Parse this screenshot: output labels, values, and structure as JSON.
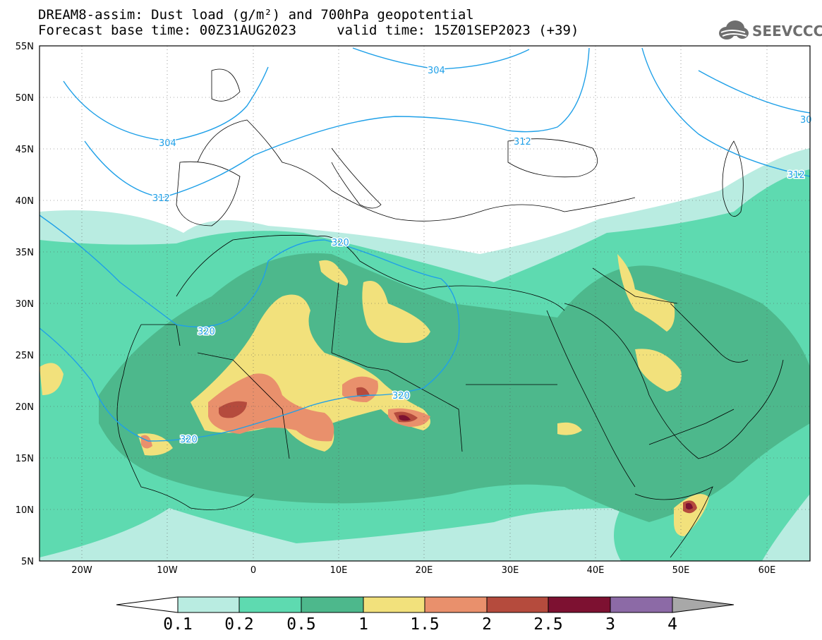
{
  "header": {
    "title_line1": "DREAM8-assim: Dust load (g/m²) and 700hPa geopotential",
    "title_line2": "Forecast base time: 00Z31AUG2023     valid time: 15Z01SEP2023 (+39)"
  },
  "logo": {
    "text": "SEEVCCC",
    "icon": "cloud-icon"
  },
  "map": {
    "lat_labels": [
      "55N",
      "50N",
      "45N",
      "40N",
      "35N",
      "30N",
      "25N",
      "20N",
      "15N",
      "10N",
      "5N"
    ],
    "lon_labels": [
      "20W",
      "10W",
      "0",
      "10E",
      "20E",
      "30E",
      "40E",
      "50E",
      "60E"
    ],
    "contour_labels": [
      "304",
      "304",
      "312",
      "312",
      "312",
      "320",
      "320",
      "320",
      "320",
      "30"
    ]
  },
  "colorbar": {
    "labels": [
      "0.1",
      "0.2",
      "0.5",
      "1",
      "1.5",
      "2",
      "2.5",
      "3",
      "4"
    ],
    "colors": [
      "#b9ece1",
      "#5edab0",
      "#4db88c",
      "#f2e17c",
      "#e9906c",
      "#b54b3d",
      "#7d1131",
      "#8c6aa6",
      "#a8a8a8"
    ]
  }
}
